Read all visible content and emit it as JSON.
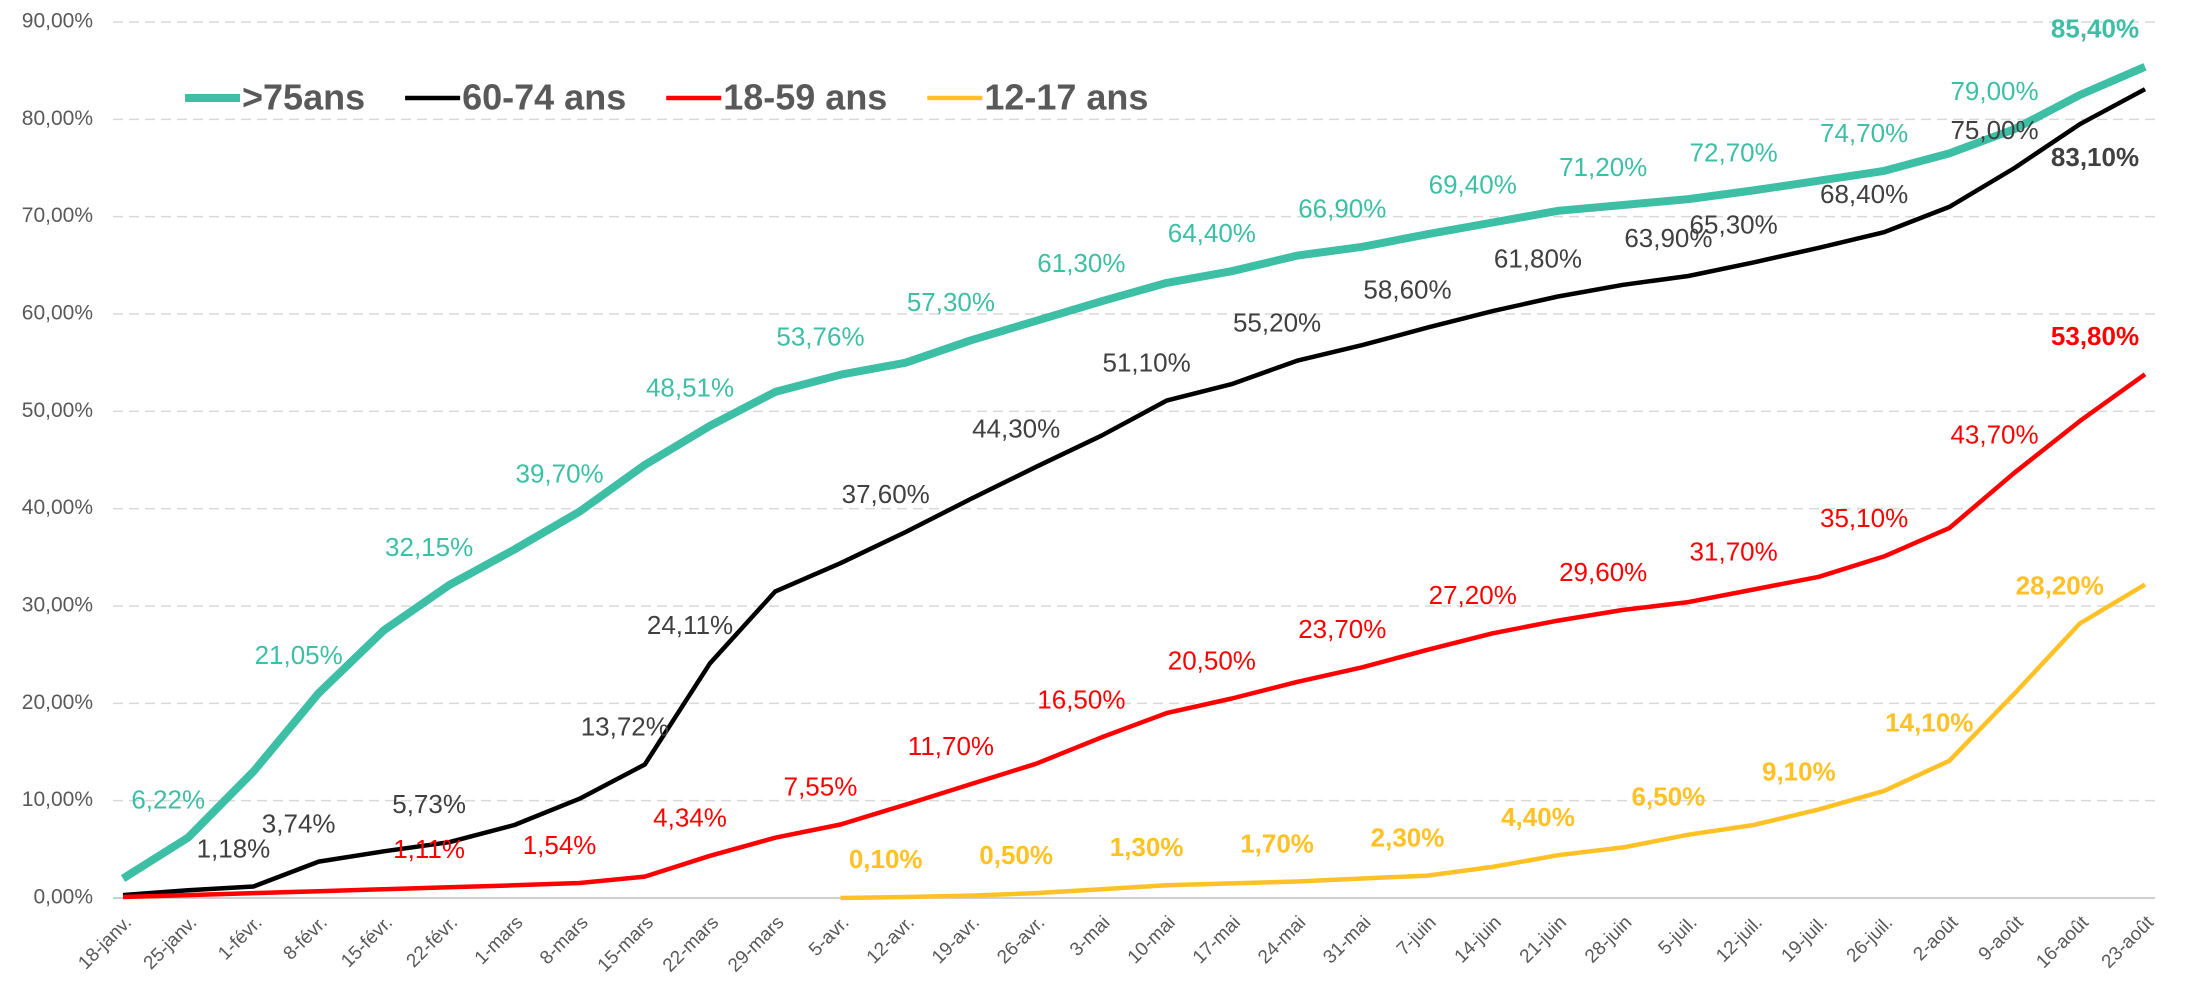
{
  "chart_data": {
    "type": "line",
    "categories": [
      "18-janv.",
      "25-janv.",
      "1-févr.",
      "8-févr.",
      "15-févr.",
      "22-févr.",
      "1-mars",
      "8-mars",
      "15-mars",
      "22-mars",
      "29-mars",
      "5-avr.",
      "12-avr.",
      "19-avr.",
      "26-avr.",
      "3-mai",
      "10-mai",
      "17-mai",
      "24-mai",
      "31-mai",
      "7-juin",
      "14-juin",
      "21-juin",
      "28-juin",
      "5-juil.",
      "12-juil.",
      "19-juil.",
      "26-juil.",
      "2-août",
      "9-août",
      "16-août",
      "23-août"
    ],
    "series": [
      {
        "name": ">75ans",
        "color": "#3cbfa4",
        "values": [
          2,
          6.22,
          13,
          21.05,
          27.5,
          32.15,
          35.8,
          39.7,
          44.5,
          48.51,
          52,
          53.76,
          55,
          57.3,
          59.3,
          61.3,
          63.2,
          64.4,
          66,
          66.9,
          68.2,
          69.4,
          70.6,
          71.2,
          71.8,
          72.7,
          73.7,
          74.7,
          76.5,
          79,
          82.5,
          85.4
        ],
        "value_labels": [
          null,
          "6,22%",
          null,
          "21,05%",
          null,
          "32,15%",
          null,
          "39,70%",
          null,
          "48,51%",
          null,
          "53,76%",
          null,
          "57,30%",
          null,
          "61,30%",
          null,
          "64,40%",
          null,
          "66,90%",
          null,
          "69,40%",
          null,
          "71,20%",
          null,
          "72,70%",
          null,
          "74,70%",
          null,
          "79,00%",
          null,
          "85,40%"
        ]
      },
      {
        "name": "60-74 ans",
        "color": "#000000",
        "values": [
          0.3,
          0.8,
          1.18,
          3.74,
          4.8,
          5.73,
          7.5,
          10.2,
          13.72,
          24.11,
          31.5,
          34.4,
          37.6,
          41,
          44.3,
          47.5,
          51.1,
          52.8,
          55.2,
          56.8,
          58.6,
          60.3,
          61.8,
          63,
          63.9,
          65.3,
          66.8,
          68.4,
          71,
          75,
          79.5,
          83.1
        ],
        "value_labels": [
          null,
          null,
          "1,18%",
          "3,74%",
          null,
          "5,73%",
          null,
          null,
          "13,72%",
          "24,11%",
          null,
          null,
          "37,60%",
          null,
          "44,30%",
          null,
          "51,10%",
          null,
          "55,20%",
          null,
          "58,60%",
          null,
          "61,80%",
          null,
          "63,90%",
          "65,30%",
          null,
          "68,40%",
          null,
          "75,00%",
          null,
          "83,10%"
        ]
      },
      {
        "name": "18-59 ans",
        "color": "#ff0000",
        "values": [
          0.1,
          0.3,
          0.5,
          0.7,
          0.9,
          1.11,
          1.3,
          1.54,
          2.2,
          4.34,
          6.2,
          7.55,
          9.6,
          11.7,
          13.8,
          16.5,
          19,
          20.5,
          22.2,
          23.7,
          25.5,
          27.2,
          28.5,
          29.6,
          30.4,
          31.7,
          33,
          35.1,
          38,
          43.7,
          49,
          53.8
        ],
        "value_labels": [
          null,
          null,
          null,
          null,
          null,
          "1,11%",
          null,
          "1,54%",
          null,
          "4,34%",
          null,
          "7,55%",
          null,
          "11,70%",
          null,
          "16,50%",
          null,
          "20,50%",
          null,
          "23,70%",
          null,
          "27,20%",
          null,
          "29,60%",
          null,
          "31,70%",
          null,
          "35,10%",
          null,
          "43,70%",
          null,
          "53,80%"
        ]
      },
      {
        "name": "12-17 ans",
        "color": "#ffc125",
        "values": [
          null,
          null,
          null,
          null,
          null,
          null,
          null,
          null,
          null,
          null,
          null,
          0,
          0.1,
          0.25,
          0.5,
          0.9,
          1.3,
          1.5,
          1.7,
          2.0,
          2.3,
          3.2,
          4.4,
          5.2,
          6.5,
          7.5,
          9.1,
          11,
          14.1,
          21,
          28.2,
          32.2
        ],
        "value_labels": [
          null,
          null,
          null,
          null,
          null,
          null,
          null,
          null,
          null,
          null,
          null,
          null,
          "0,10%",
          null,
          "0,50%",
          null,
          "1,30%",
          null,
          "1,70%",
          null,
          "2,30%",
          null,
          "4,40%",
          null,
          "6,50%",
          null,
          "9,10%",
          null,
          "14,10%",
          null,
          "28,20%",
          null
        ]
      }
    ],
    "ylim": [
      0,
      90
    ],
    "yticks": [
      {
        "value": 0,
        "label": "0,00%"
      },
      {
        "value": 10,
        "label": "10,00%"
      },
      {
        "value": 20,
        "label": "20,00%"
      },
      {
        "value": 30,
        "label": "30,00%"
      },
      {
        "value": 40,
        "label": "40,00%"
      },
      {
        "value": 50,
        "label": "50,00%"
      },
      {
        "value": 60,
        "label": "60,00%"
      },
      {
        "value": 70,
        "label": "70,00%"
      },
      {
        "value": 80,
        "label": "80,00%"
      },
      {
        "value": 90,
        "label": "90,00%"
      }
    ],
    "grid": true,
    "legend": "top-left"
  }
}
